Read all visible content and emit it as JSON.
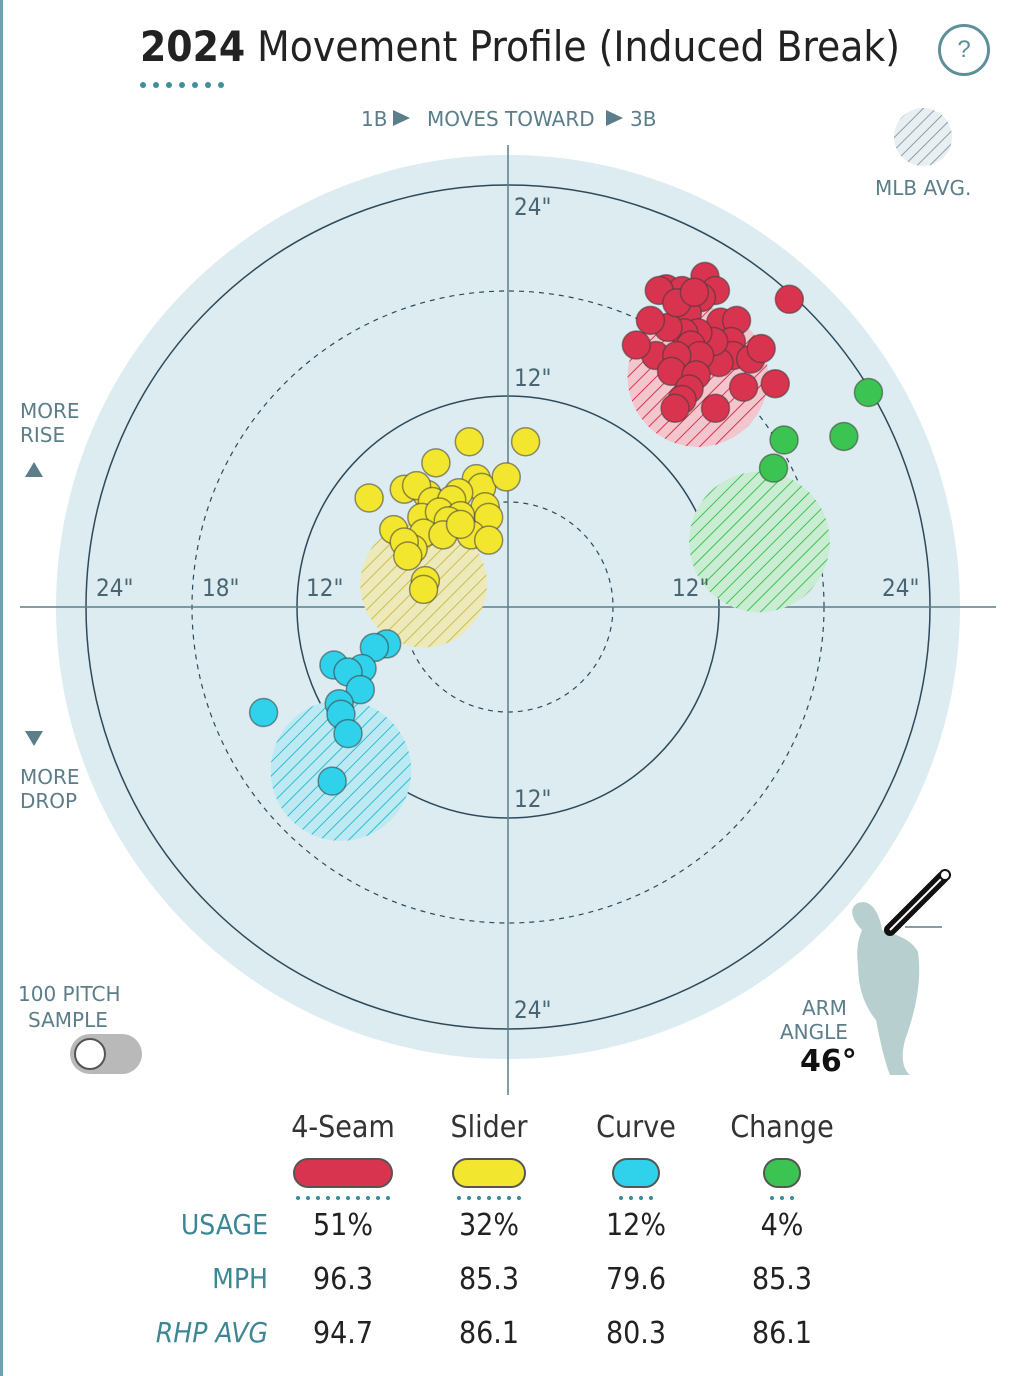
{
  "header": {
    "year": "2024",
    "title": "Movement Profile (Induced Break)",
    "help_symbol": "?"
  },
  "direction": {
    "left_label": "1B",
    "center_label": "MOVES TOWARD",
    "right_label": "3B"
  },
  "mlb_avg_label": "MLB AVG.",
  "rise_label": [
    "MORE",
    "RISE"
  ],
  "drop_label": [
    "MORE",
    "DROP"
  ],
  "sample_label": [
    "100 PITCH",
    "SAMPLE"
  ],
  "arm_angle": {
    "label": [
      "ARM",
      "ANGLE"
    ],
    "value": "46°"
  },
  "colors": {
    "background_disc": "#dcecf1",
    "ring": "#2e4a5a",
    "4-Seam": "#d9344f",
    "Slider": "#f3e62e",
    "Curve": "#2fd2ea",
    "Change": "#3cc452"
  },
  "chart_data": {
    "type": "scatter",
    "title": "2024 Movement Profile (Induced Break)",
    "x_unit": "inches horizontal break (positive = toward 3B)",
    "y_unit": "inches induced vertical break",
    "xlim": [
      -24,
      24
    ],
    "ylim": [
      -24,
      24
    ],
    "ring_labels": {
      "solid": [
        "12\"",
        "24\""
      ],
      "dashed_horizontal": [
        "18\""
      ],
      "vertical_top": [
        "24\"",
        "12\""
      ],
      "vertical_bottom": [
        "12\"",
        "24\""
      ],
      "horizontal_left": [
        "24\"",
        "18\"",
        "12\""
      ],
      "horizontal_right": [
        "12\"",
        "24\""
      ]
    },
    "series": [
      {
        "name": "4-Seam",
        "avg": {
          "x": 10.8,
          "y": 13.1,
          "r": 4.0
        },
        "points": [
          [
            9.0,
            18.1
          ],
          [
            9.9,
            18.0
          ],
          [
            11.2,
            18.8
          ],
          [
            11.8,
            18.0
          ],
          [
            11.0,
            17.6
          ],
          [
            10.2,
            16.7
          ],
          [
            12.1,
            16.2
          ],
          [
            13.0,
            16.3
          ],
          [
            12.7,
            15.1
          ],
          [
            12.8,
            14.3
          ],
          [
            13.8,
            14.1
          ],
          [
            12.0,
            13.9
          ],
          [
            11.7,
            15.1
          ],
          [
            10.8,
            15.6
          ],
          [
            10.0,
            15.6
          ],
          [
            9.1,
            15.9
          ],
          [
            10.4,
            14.9
          ],
          [
            10.9,
            14.3
          ],
          [
            8.4,
            14.3
          ],
          [
            9.6,
            14.3
          ],
          [
            9.3,
            13.4
          ],
          [
            10.7,
            13.2
          ],
          [
            7.3,
            14.9
          ],
          [
            8.1,
            16.3
          ],
          [
            10.3,
            12.4
          ],
          [
            9.9,
            11.8
          ],
          [
            9.5,
            11.3
          ],
          [
            11.8,
            11.3
          ],
          [
            13.4,
            12.5
          ],
          [
            15.2,
            12.7
          ],
          [
            14.4,
            14.7
          ],
          [
            16.0,
            17.5
          ],
          [
            8.6,
            18.0
          ],
          [
            9.6,
            17.3
          ],
          [
            10.6,
            17.9
          ]
        ],
        "usage": "51%",
        "mph": "96.3",
        "rhp_avg": "94.7"
      },
      {
        "name": "Slider",
        "avg": {
          "x": -4.8,
          "y": 1.3,
          "r": 3.6
        },
        "points": [
          [
            -2.2,
            9.4
          ],
          [
            1.0,
            9.4
          ],
          [
            -4.1,
            8.2
          ],
          [
            -1.8,
            7.3
          ],
          [
            -1.5,
            6.8
          ],
          [
            -0.1,
            7.4
          ],
          [
            -5.9,
            6.7
          ],
          [
            -4.6,
            6.4
          ],
          [
            -5.2,
            6.9
          ],
          [
            -4.3,
            6.0
          ],
          [
            -2.8,
            6.5
          ],
          [
            -3.2,
            6.1
          ],
          [
            -1.3,
            5.7
          ],
          [
            -7.9,
            6.2
          ],
          [
            -4.9,
            5.1
          ],
          [
            -3.9,
            5.4
          ],
          [
            -2.7,
            5.2
          ],
          [
            -1.1,
            5.1
          ],
          [
            -3.4,
            4.9
          ],
          [
            -4.8,
            4.2
          ],
          [
            -6.5,
            4.4
          ],
          [
            -5.4,
            3.3
          ],
          [
            -3.7,
            4.1
          ],
          [
            -2.1,
            4.1
          ],
          [
            -5.9,
            3.7
          ],
          [
            -2.7,
            4.7
          ],
          [
            -1.1,
            3.8
          ],
          [
            -5.7,
            2.9
          ],
          [
            -4.7,
            1.5
          ],
          [
            -4.8,
            1.0
          ]
        ],
        "usage": "32%",
        "mph": "85.3",
        "rhp_avg": "86.1"
      },
      {
        "name": "Curve",
        "avg": {
          "x": -9.5,
          "y": -9.3,
          "r": 4.0
        },
        "points": [
          [
            -6.9,
            -2.1
          ],
          [
            -7.6,
            -2.3
          ],
          [
            -8.3,
            -3.5
          ],
          [
            -9.9,
            -3.3
          ],
          [
            -9.1,
            -3.7
          ],
          [
            -8.4,
            -4.7
          ],
          [
            -9.6,
            -5.5
          ],
          [
            -9.5,
            -6.1
          ],
          [
            -13.9,
            -6.0
          ],
          [
            -9.1,
            -7.2
          ],
          [
            -10.0,
            -9.9
          ]
        ],
        "usage": "12%",
        "mph": "79.6",
        "rhp_avg": "80.3"
      },
      {
        "name": "Change",
        "avg": {
          "x": 14.3,
          "y": 3.7,
          "r": 4.0
        },
        "points": [
          [
            20.5,
            12.2
          ],
          [
            15.7,
            9.5
          ],
          [
            19.1,
            9.7
          ],
          [
            15.1,
            7.9
          ]
        ],
        "usage": "4%",
        "mph": "85.3",
        "rhp_avg": "86.1"
      }
    ],
    "legend_placement": "bottom",
    "stat_rows": [
      "USAGE",
      "MPH",
      "RHP AVG"
    ]
  }
}
